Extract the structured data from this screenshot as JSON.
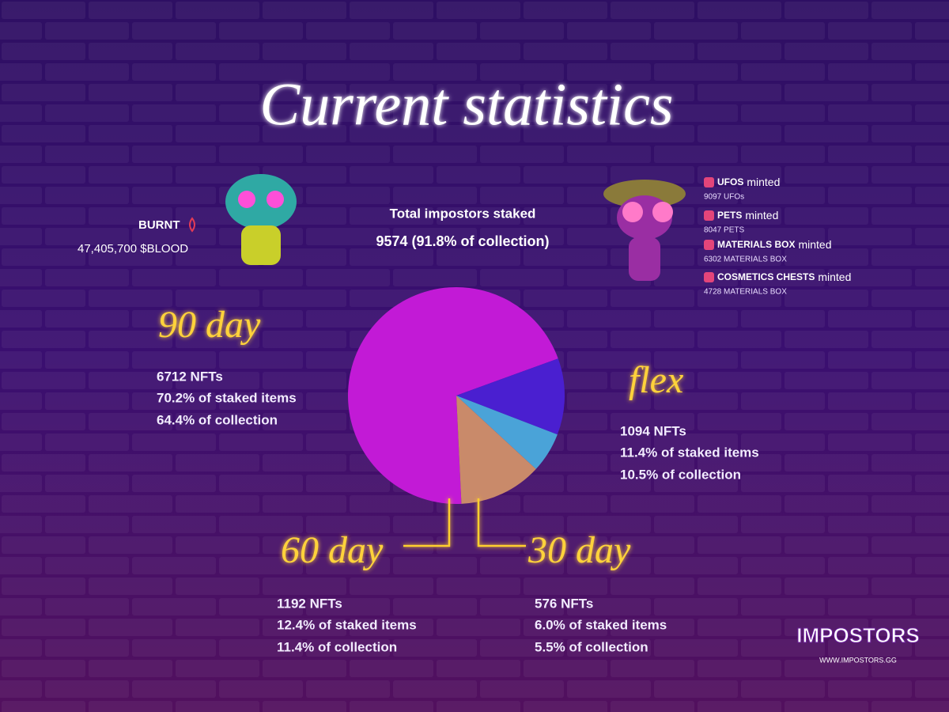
{
  "chart_data": {
    "type": "pie",
    "title": "Current statistics",
    "total_label": "Total impostors staked",
    "total_value": "9574 (91.8% of collection)",
    "burnt": {
      "label": "BURNT",
      "value": "47,405,700 $BLOOD"
    },
    "minted": [
      {
        "name": "UFOS",
        "suffix": "minted",
        "detail": "9097 UFOs"
      },
      {
        "name": "PETS",
        "suffix": "minted",
        "detail": "8047 PETS"
      },
      {
        "name": "MATERIALS BOX",
        "suffix": "minted",
        "detail": "6302 MATERIALS BOX"
      },
      {
        "name": "COSMETICS CHESTS",
        "suffix": "minted",
        "detail": "4728 MATERIALS BOX"
      }
    ],
    "categories": [
      "90 day",
      "flex",
      "30 day",
      "60 day"
    ],
    "values": [
      70.2,
      11.4,
      6.0,
      12.4
    ],
    "value_labels": [
      "70.2% of staked items",
      "11.4% of staked items",
      "6.0% of staked items",
      "12.4% of staked items"
    ],
    "nft_labels": [
      "6712 NFTs",
      "1094 NFTs",
      "576 NFTs",
      "1192 NFTs"
    ],
    "collection_labels": [
      "64.4% of collection",
      "10.5% of collection",
      "5.5% of collection",
      "11.4% of collection"
    ],
    "colors": [
      "#c21ad6",
      "#4a1fd0",
      "#4aa3d8",
      "#c98a6a"
    ],
    "logo": "IMPOSTORS",
    "url": "WWW.IMPOSTORS.GG"
  }
}
